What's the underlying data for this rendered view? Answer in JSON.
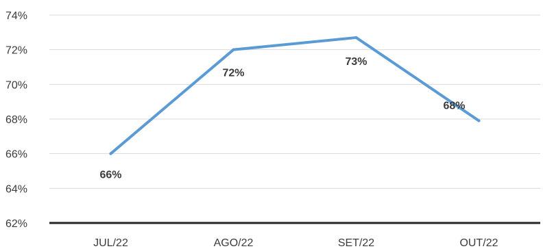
{
  "chart_data": {
    "type": "line",
    "title": "",
    "xlabel": "",
    "ylabel": "",
    "categories": [
      "JUL/22",
      "AGO/22",
      "SET/22",
      "OUT/22"
    ],
    "series": [
      {
        "values": [
          66.0,
          72.0,
          72.7,
          67.9
        ],
        "data_labels": [
          "66%",
          "72%",
          "73%",
          "68%"
        ],
        "color": "#5b9bd5"
      }
    ],
    "ylim": [
      62,
      74
    ],
    "y_ticks": [
      62,
      64,
      66,
      68,
      70,
      72,
      74
    ],
    "y_tick_labels": [
      "62%",
      "64%",
      "66%",
      "68%",
      "70%",
      "72%",
      "74%"
    ],
    "grid": true,
    "legend": "none",
    "colors": {
      "gridline": "#d9d9d9",
      "baseline": "#262626",
      "text": "#3b3b3b"
    }
  }
}
